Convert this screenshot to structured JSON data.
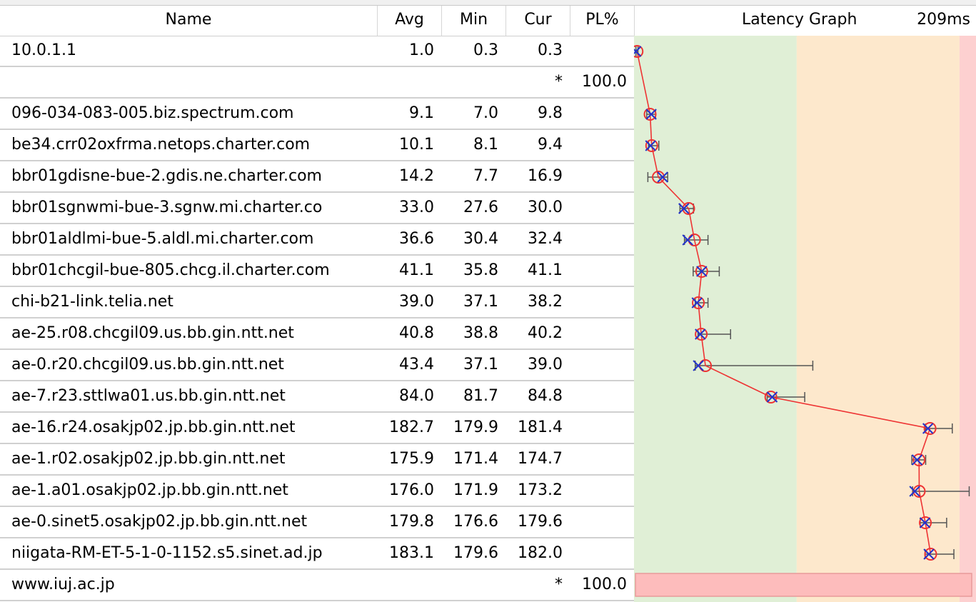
{
  "columns": {
    "name": "Name",
    "avg": "Avg",
    "min": "Min",
    "cur": "Cur",
    "pl": "PL%",
    "graph": "Latency Graph",
    "graph_max": "209ms"
  },
  "graph_scale_max_ms": 209,
  "zones": [
    {
      "to_ms": 100,
      "color": "#e0efd6"
    },
    {
      "to_ms": 201,
      "color": "#fde8cc"
    },
    {
      "to_ms": 209,
      "color": "#fdd0d0"
    }
  ],
  "colors": {
    "line": "#ee3333",
    "marker_circle": "#ee3333",
    "marker_cross": "#2233cc",
    "range_bar": "#555555",
    "timeout_bar": "#fdbcbc",
    "timeout_border": "#e89a9a"
  },
  "hops": [
    {
      "name": "10.0.1.1",
      "avg": "1.0",
      "min": "0.3",
      "cur": "0.3",
      "pl": "",
      "star": "",
      "avg_ms": 1.0,
      "min_ms": 0.3,
      "cur_ms": 0.3,
      "max_ms": 1.6
    },
    {
      "name": "",
      "avg": "",
      "min": "",
      "cur": "",
      "pl": "100.0",
      "star": "*"
    },
    {
      "name": "096-034-083-005.biz.spectrum.com",
      "avg": "9.1",
      "min": "7.0",
      "cur": "9.8",
      "pl": "",
      "star": "",
      "avg_ms": 9.1,
      "min_ms": 7.0,
      "cur_ms": 9.8,
      "max_ms": 12.5
    },
    {
      "name": "be34.crr02oxfrma.netops.charter.com",
      "avg": "10.1",
      "min": "8.1",
      "cur": "9.4",
      "pl": "",
      "star": "",
      "avg_ms": 10.1,
      "min_ms": 8.1,
      "cur_ms": 9.4,
      "max_ms": 14.5
    },
    {
      "name": "bbr01gdisne-bue-2.gdis.ne.charter.com",
      "avg": "14.2",
      "min": "7.7",
      "cur": "16.9",
      "pl": "",
      "star": "",
      "avg_ms": 14.2,
      "min_ms": 7.7,
      "cur_ms": 16.9,
      "max_ms": 20.0
    },
    {
      "name": "bbr01sgnwmi-bue-3.sgnw.mi.charter.co",
      "avg": "33.0",
      "min": "27.6",
      "cur": "30.0",
      "pl": "",
      "star": "",
      "avg_ms": 33.0,
      "min_ms": 27.6,
      "cur_ms": 30.0,
      "max_ms": 36.0
    },
    {
      "name": "bbr01aldlmi-bue-5.aldl.mi.charter.com",
      "avg": "36.6",
      "min": "30.4",
      "cur": "32.4",
      "pl": "",
      "star": "",
      "avg_ms": 36.6,
      "min_ms": 30.4,
      "cur_ms": 32.4,
      "max_ms": 45.0
    },
    {
      "name": "bbr01chcgil-bue-805.chcg.il.charter.com",
      "avg": "41.1",
      "min": "35.8",
      "cur": "41.1",
      "pl": "",
      "star": "",
      "avg_ms": 41.1,
      "min_ms": 35.8,
      "cur_ms": 41.1,
      "max_ms": 52.0
    },
    {
      "name": "chi-b21-link.telia.net",
      "avg": "39.0",
      "min": "37.1",
      "cur": "38.2",
      "pl": "",
      "star": "",
      "avg_ms": 39.0,
      "min_ms": 37.1,
      "cur_ms": 38.2,
      "max_ms": 45.0
    },
    {
      "name": "ae-25.r08.chcgil09.us.bb.gin.ntt.net",
      "avg": "40.8",
      "min": "38.8",
      "cur": "40.2",
      "pl": "",
      "star": "",
      "avg_ms": 40.8,
      "min_ms": 38.8,
      "cur_ms": 40.2,
      "max_ms": 59.0
    },
    {
      "name": "ae-0.r20.chcgil09.us.bb.gin.ntt.net",
      "avg": "43.4",
      "min": "37.1",
      "cur": "39.0",
      "pl": "",
      "star": "",
      "avg_ms": 43.4,
      "min_ms": 37.1,
      "cur_ms": 39.0,
      "max_ms": 110.0
    },
    {
      "name": "ae-7.r23.sttlwa01.us.bb.gin.ntt.net",
      "avg": "84.0",
      "min": "81.7",
      "cur": "84.8",
      "pl": "",
      "star": "",
      "avg_ms": 84.0,
      "min_ms": 81.7,
      "cur_ms": 84.8,
      "max_ms": 105.0
    },
    {
      "name": "ae-16.r24.osakjp02.jp.bb.gin.ntt.net",
      "avg": "182.7",
      "min": "179.9",
      "cur": "181.4",
      "pl": "",
      "star": "",
      "avg_ms": 182.7,
      "min_ms": 179.9,
      "cur_ms": 181.4,
      "max_ms": 196.5
    },
    {
      "name": "ae-1.r02.osakjp02.jp.bb.gin.ntt.net",
      "avg": "175.9",
      "min": "171.4",
      "cur": "174.7",
      "pl": "",
      "star": "",
      "avg_ms": 175.9,
      "min_ms": 171.4,
      "cur_ms": 174.7,
      "max_ms": 180.0
    },
    {
      "name": "ae-1.a01.osakjp02.jp.bb.gin.ntt.net",
      "avg": "176.0",
      "min": "171.9",
      "cur": "173.2",
      "pl": "",
      "star": "",
      "avg_ms": 176.0,
      "min_ms": 171.9,
      "cur_ms": 173.2,
      "max_ms": 207.0
    },
    {
      "name": "ae-0.sinet5.osakjp02.jp.bb.gin.ntt.net",
      "avg": "179.8",
      "min": "176.6",
      "cur": "179.6",
      "pl": "",
      "star": "",
      "avg_ms": 179.8,
      "min_ms": 176.6,
      "cur_ms": 179.6,
      "max_ms": 193.0
    },
    {
      "name": "niigata-RM-ET-5-1-0-1152.s5.sinet.ad.jp",
      "avg": "183.1",
      "min": "179.6",
      "cur": "182.0",
      "pl": "",
      "star": "",
      "avg_ms": 183.1,
      "min_ms": 179.6,
      "cur_ms": 182.0,
      "max_ms": 197.5
    },
    {
      "name": "www.iuj.ac.jp",
      "avg": "",
      "min": "",
      "cur": "",
      "pl": "100.0",
      "star": "*",
      "timeout": true
    }
  ]
}
